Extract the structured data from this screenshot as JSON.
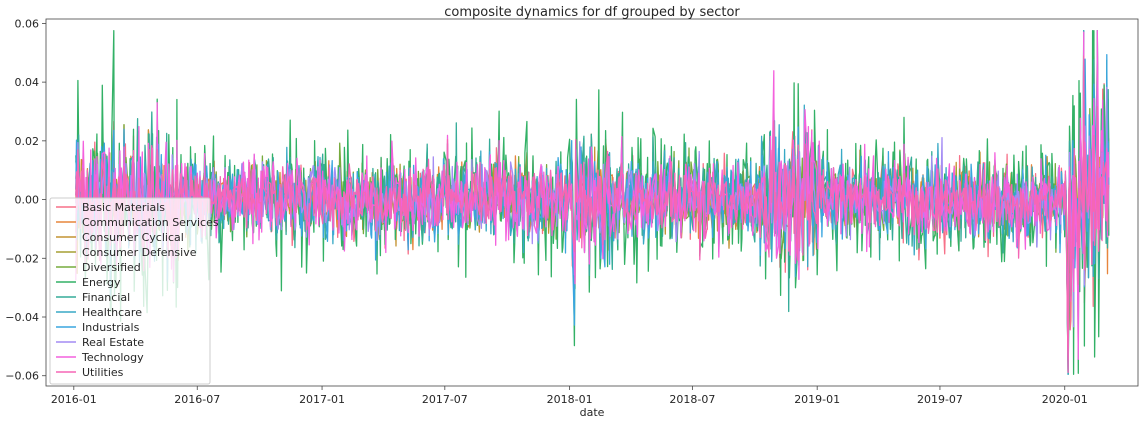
{
  "chart_data": {
    "type": "line",
    "title": "composite dynamics for df grouped by sector",
    "xlabel": "date",
    "ylabel": "",
    "x_start": "2016-01-04",
    "x_end": "2020-03-06",
    "xlim": [
      "2015-11-21",
      "2020-04-18"
    ],
    "ylim": [
      -0.0635,
      0.0615
    ],
    "x_ticks": [
      "2016-01",
      "2016-07",
      "2017-01",
      "2017-07",
      "2018-01",
      "2018-07",
      "2019-01",
      "2019-07",
      "2020-01"
    ],
    "y_ticks": [
      0.06,
      0.04,
      0.02,
      0.0,
      -0.02,
      -0.04,
      -0.06
    ],
    "y_tick_labels": [
      "0.06",
      "0.04",
      "0.02",
      "0.00",
      "−0.02",
      "−0.04",
      "−0.06"
    ],
    "grid": false,
    "legend_position": "lower-left",
    "series": [
      {
        "name": "Basic Materials",
        "color": "#f77189",
        "volatility": 0.0075
      },
      {
        "name": "Communication Services",
        "color": "#e7853c",
        "volatility": 0.0065
      },
      {
        "name": "Consumer Cyclical",
        "color": "#c49332",
        "volatility": 0.0065
      },
      {
        "name": "Consumer Defensive",
        "color": "#a69f33",
        "volatility": 0.005
      },
      {
        "name": "Diversified",
        "color": "#76ab3d",
        "volatility": 0.007
      },
      {
        "name": "Energy",
        "color": "#32b166",
        "volatility": 0.0125
      },
      {
        "name": "Financial",
        "color": "#35ac99",
        "volatility": 0.0085
      },
      {
        "name": "Healthcare",
        "color": "#38a9c5",
        "volatility": 0.0075
      },
      {
        "name": "Industrials",
        "color": "#3aa5df",
        "volatility": 0.0075
      },
      {
        "name": "Real Estate",
        "color": "#a48cf4",
        "volatility": 0.0065
      },
      {
        "name": "Technology",
        "color": "#f461dd",
        "volatility": 0.0085
      },
      {
        "name": "Utilities",
        "color": "#f566b5",
        "volatility": 0.0065
      }
    ]
  }
}
